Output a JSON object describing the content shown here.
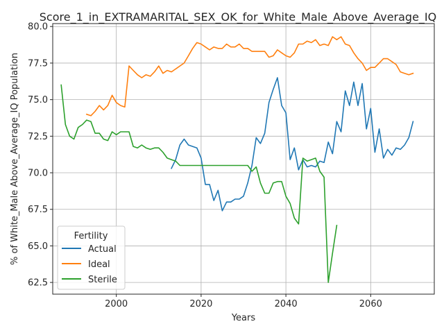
{
  "chart_data": {
    "type": "line",
    "title": "Score_1_in_EXTRAMARITAL_SEX_OK_for_White_Male_Above_Average_IQ",
    "xlabel": "Years",
    "ylabel": "% of White_Male Above_Average_IQ Population",
    "xlim": [
      1985,
      2075
    ],
    "ylim": [
      61.7,
      80.2
    ],
    "xticks": [
      2000,
      2020,
      2040,
      2060
    ],
    "yticks": [
      62.5,
      65.0,
      67.5,
      70.0,
      72.5,
      75.0,
      77.5,
      80.0
    ],
    "ytick_labels": [
      "62.5",
      "65.0",
      "67.5",
      "70.0",
      "72.5",
      "75.0",
      "77.5",
      "80.0"
    ],
    "grid": true,
    "legend": {
      "title": "Fertility",
      "placement": "lower-left"
    },
    "series": [
      {
        "name": "Actual",
        "color": "#1f77b4",
        "points": [
          [
            2013,
            70.3
          ],
          [
            2014,
            70.9
          ],
          [
            2015,
            71.9
          ],
          [
            2016,
            72.3
          ],
          [
            2017,
            71.9
          ],
          [
            2018,
            71.8
          ],
          [
            2019,
            71.7
          ],
          [
            2020,
            71.0
          ],
          [
            2021,
            69.2
          ],
          [
            2022,
            69.2
          ],
          [
            2023,
            68.1
          ],
          [
            2024,
            68.8
          ],
          [
            2025,
            67.4
          ],
          [
            2026,
            68.0
          ],
          [
            2027,
            68.0
          ],
          [
            2028,
            68.2
          ],
          [
            2029,
            68.2
          ],
          [
            2030,
            68.4
          ],
          [
            2031,
            69.3
          ],
          [
            2032,
            70.5
          ],
          [
            2033,
            72.4
          ],
          [
            2034,
            72.0
          ],
          [
            2035,
            72.7
          ],
          [
            2036,
            74.8
          ],
          [
            2037,
            75.7
          ],
          [
            2038,
            76.5
          ],
          [
            2039,
            74.6
          ],
          [
            2040,
            74.1
          ],
          [
            2041,
            70.9
          ],
          [
            2042,
            71.7
          ],
          [
            2043,
            70.2
          ],
          [
            2044,
            70.9
          ],
          [
            2045,
            70.4
          ],
          [
            2046,
            70.5
          ],
          [
            2047,
            70.4
          ],
          [
            2048,
            70.8
          ],
          [
            2049,
            70.7
          ],
          [
            2050,
            72.1
          ],
          [
            2051,
            71.3
          ],
          [
            2052,
            73.5
          ],
          [
            2053,
            72.8
          ],
          [
            2054,
            75.6
          ],
          [
            2055,
            74.6
          ],
          [
            2056,
            76.2
          ],
          [
            2057,
            74.6
          ],
          [
            2058,
            76.1
          ],
          [
            2059,
            73.0
          ],
          [
            2060,
            74.4
          ],
          [
            2061,
            71.4
          ],
          [
            2062,
            73.0
          ],
          [
            2063,
            71.0
          ],
          [
            2064,
            71.6
          ],
          [
            2065,
            71.2
          ],
          [
            2066,
            71.7
          ],
          [
            2067,
            71.6
          ],
          [
            2068,
            71.9
          ],
          [
            2069,
            72.4
          ],
          [
            2070,
            73.5
          ]
        ]
      },
      {
        "name": "Ideal",
        "color": "#ff7f0e",
        "points": [
          [
            1993,
            74.0
          ],
          [
            1994,
            73.9
          ],
          [
            1995,
            74.2
          ],
          [
            1996,
            74.6
          ],
          [
            1997,
            74.3
          ],
          [
            1998,
            74.6
          ],
          [
            1999,
            75.3
          ],
          [
            2000,
            74.8
          ],
          [
            2001,
            74.6
          ],
          [
            2002,
            74.5
          ],
          [
            2003,
            77.3
          ],
          [
            2004,
            77.0
          ],
          [
            2005,
            76.7
          ],
          [
            2006,
            76.5
          ],
          [
            2007,
            76.7
          ],
          [
            2008,
            76.6
          ],
          [
            2009,
            76.9
          ],
          [
            2010,
            77.3
          ],
          [
            2011,
            76.8
          ],
          [
            2012,
            77.0
          ],
          [
            2013,
            76.9
          ],
          [
            2014,
            77.1
          ],
          [
            2015,
            77.3
          ],
          [
            2016,
            77.5
          ],
          [
            2017,
            78.0
          ],
          [
            2018,
            78.5
          ],
          [
            2019,
            78.9
          ],
          [
            2020,
            78.8
          ],
          [
            2021,
            78.6
          ],
          [
            2022,
            78.4
          ],
          [
            2023,
            78.6
          ],
          [
            2024,
            78.5
          ],
          [
            2025,
            78.5
          ],
          [
            2026,
            78.8
          ],
          [
            2027,
            78.6
          ],
          [
            2028,
            78.6
          ],
          [
            2029,
            78.8
          ],
          [
            2030,
            78.5
          ],
          [
            2031,
            78.5
          ],
          [
            2032,
            78.3
          ],
          [
            2033,
            78.3
          ],
          [
            2034,
            78.3
          ],
          [
            2035,
            78.3
          ],
          [
            2036,
            77.9
          ],
          [
            2037,
            78.0
          ],
          [
            2038,
            78.4
          ],
          [
            2039,
            78.2
          ],
          [
            2040,
            78.0
          ],
          [
            2041,
            77.9
          ],
          [
            2042,
            78.2
          ],
          [
            2043,
            78.8
          ],
          [
            2044,
            78.8
          ],
          [
            2045,
            79.0
          ],
          [
            2046,
            78.9
          ],
          [
            2047,
            79.1
          ],
          [
            2048,
            78.7
          ],
          [
            2049,
            78.8
          ],
          [
            2050,
            78.7
          ],
          [
            2051,
            79.3
          ],
          [
            2052,
            79.1
          ],
          [
            2053,
            79.3
          ],
          [
            2054,
            78.8
          ],
          [
            2055,
            78.7
          ],
          [
            2056,
            78.2
          ],
          [
            2057,
            77.8
          ],
          [
            2058,
            77.5
          ],
          [
            2059,
            77.0
          ],
          [
            2060,
            77.2
          ],
          [
            2061,
            77.2
          ],
          [
            2062,
            77.5
          ],
          [
            2063,
            77.8
          ],
          [
            2064,
            77.8
          ],
          [
            2065,
            77.6
          ],
          [
            2066,
            77.4
          ],
          [
            2067,
            76.9
          ],
          [
            2068,
            76.8
          ],
          [
            2069,
            76.7
          ],
          [
            2070,
            76.8
          ]
        ]
      },
      {
        "name": "Sterile",
        "color": "#2ca02c",
        "points": [
          [
            1987,
            76.0
          ],
          [
            1988,
            73.3
          ],
          [
            1989,
            72.5
          ],
          [
            1990,
            72.3
          ],
          [
            1991,
            73.1
          ],
          [
            1992,
            73.3
          ],
          [
            1993,
            73.6
          ],
          [
            1994,
            73.5
          ],
          [
            1995,
            72.7
          ],
          [
            1996,
            72.7
          ],
          [
            1997,
            72.3
          ],
          [
            1998,
            72.2
          ],
          [
            1999,
            72.8
          ],
          [
            2000,
            72.6
          ],
          [
            2001,
            72.8
          ],
          [
            2002,
            72.8
          ],
          [
            2003,
            72.8
          ],
          [
            2004,
            71.8
          ],
          [
            2005,
            71.7
          ],
          [
            2006,
            71.9
          ],
          [
            2007,
            71.7
          ],
          [
            2008,
            71.6
          ],
          [
            2009,
            71.7
          ],
          [
            2010,
            71.7
          ],
          [
            2011,
            71.4
          ],
          [
            2012,
            71.0
          ],
          [
            2013,
            70.9
          ],
          [
            2014,
            70.8
          ],
          [
            2015,
            70.5
          ],
          [
            2016,
            70.5
          ],
          [
            2017,
            70.5
          ],
          [
            2018,
            70.5
          ],
          [
            2019,
            70.5
          ],
          [
            2020,
            70.5
          ],
          [
            2021,
            70.5
          ],
          [
            2022,
            70.5
          ],
          [
            2023,
            70.5
          ],
          [
            2024,
            70.5
          ],
          [
            2025,
            70.5
          ],
          [
            2026,
            70.5
          ],
          [
            2027,
            70.5
          ],
          [
            2028,
            70.5
          ],
          [
            2029,
            70.5
          ],
          [
            2030,
            70.5
          ],
          [
            2031,
            70.5
          ],
          [
            2032,
            70.1
          ],
          [
            2033,
            70.4
          ],
          [
            2034,
            69.3
          ],
          [
            2035,
            68.6
          ],
          [
            2036,
            68.6
          ],
          [
            2037,
            69.3
          ],
          [
            2038,
            69.4
          ],
          [
            2039,
            69.4
          ],
          [
            2040,
            68.4
          ],
          [
            2041,
            67.9
          ],
          [
            2042,
            66.9
          ],
          [
            2043,
            66.5
          ],
          [
            2044,
            71.0
          ],
          [
            2045,
            70.8
          ],
          [
            2046,
            70.9
          ],
          [
            2047,
            71.0
          ],
          [
            2048,
            70.1
          ],
          [
            2049,
            69.7
          ],
          [
            2050,
            62.5
          ],
          [
            2051,
            64.5
          ],
          [
            2052,
            66.4
          ]
        ]
      }
    ]
  }
}
